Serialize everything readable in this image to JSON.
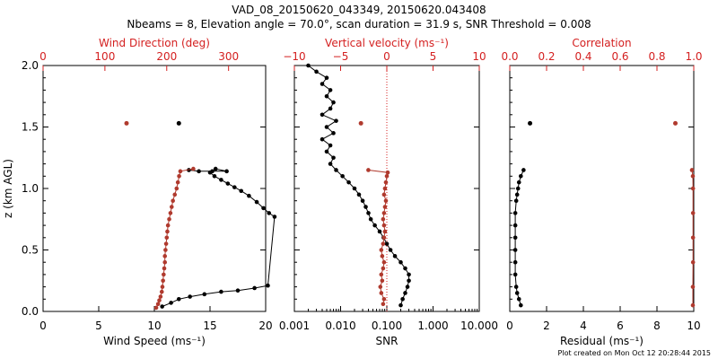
{
  "figure": {
    "title_line1": "VAD_08_20150620_043349, 20150620.043408",
    "title_line2": "Nbeams = 8, Elevation angle = 70.0°, scan duration = 31.9 s, SNR Threshold = 0.008",
    "footer": "Plot created on Mon Oct 12 20:28:44 2015",
    "colors": {
      "black_series": "#000000",
      "red_series": "#b03a2e",
      "red_axis": "#d42020",
      "background": "#ffffff"
    }
  },
  "chart_data": [
    {
      "type": "line",
      "panel": "wind",
      "ylabel": "z (km AGL)",
      "ylim": [
        0,
        2
      ],
      "y_ticks": [
        "0.0",
        "0.5",
        "1.0",
        "1.5",
        "2.0"
      ],
      "bottom_axis": {
        "label": "Wind Speed (ms⁻¹)",
        "lim": [
          0,
          20
        ],
        "ticks": [
          "0",
          "5",
          "10",
          "15",
          "20"
        ]
      },
      "top_axis": {
        "label": "Wind Direction (deg)",
        "lim": [
          0,
          360
        ],
        "ticks": [
          "0",
          "100",
          "200",
          "300"
        ]
      },
      "series": [
        {
          "name": "Wind Speed",
          "axis": "bottom",
          "color": "#000000",
          "points": [
            [
              10.7,
              0.04
            ],
            [
              11.5,
              0.07
            ],
            [
              12.2,
              0.1
            ],
            [
              13.2,
              0.12
            ],
            [
              14.5,
              0.14
            ],
            [
              16.0,
              0.16
            ],
            [
              17.5,
              0.17
            ],
            [
              19.0,
              0.19
            ],
            [
              20.2,
              0.21
            ],
            [
              20.8,
              0.77
            ],
            [
              20.3,
              0.8
            ],
            [
              19.8,
              0.84
            ],
            [
              19.2,
              0.89
            ],
            [
              18.5,
              0.94
            ],
            [
              17.8,
              0.98
            ],
            [
              17.2,
              1.01
            ],
            [
              16.6,
              1.04
            ],
            [
              16.0,
              1.07
            ],
            [
              15.4,
              1.1
            ],
            [
              15.0,
              1.13
            ],
            [
              15.5,
              1.16
            ],
            [
              16.5,
              1.14
            ],
            [
              15.2,
              1.14
            ],
            [
              14.0,
              1.14
            ],
            [
              13.1,
              1.15
            ]
          ]
        },
        {
          "name": "Wind Direction",
          "axis": "top",
          "color": "#b03a2e",
          "points": [
            [
              183,
              0.03
            ],
            [
              186,
              0.06
            ],
            [
              188,
              0.09
            ],
            [
              190,
              0.12
            ],
            [
              192,
              0.16
            ],
            [
              193,
              0.2
            ],
            [
              194,
              0.25
            ],
            [
              195,
              0.3
            ],
            [
              196,
              0.35
            ],
            [
              197,
              0.4
            ],
            [
              197,
              0.45
            ],
            [
              198,
              0.5
            ],
            [
              199,
              0.55
            ],
            [
              200,
              0.6
            ],
            [
              201,
              0.65
            ],
            [
              202,
              0.7
            ],
            [
              204,
              0.75
            ],
            [
              206,
              0.8
            ],
            [
              208,
              0.85
            ],
            [
              210,
              0.9
            ],
            [
              213,
              0.95
            ],
            [
              216,
              1.0
            ],
            [
              218,
              1.05
            ],
            [
              220,
              1.1
            ],
            [
              222,
              1.14
            ],
            [
              243,
              1.16
            ]
          ]
        }
      ],
      "isolated_points": [
        {
          "series": "Wind Speed",
          "x": 12.2,
          "y": 1.53
        },
        {
          "series": "Wind Direction",
          "x": 135,
          "y": 1.53
        }
      ]
    },
    {
      "type": "line",
      "panel": "snr",
      "ylim": [
        0,
        2
      ],
      "bottom_axis": {
        "label": "SNR",
        "scale": "log",
        "lim": [
          0.001,
          10
        ],
        "ticks": [
          "0.001",
          "0.010",
          "0.100",
          "1.000",
          "10.000"
        ]
      },
      "top_axis": {
        "label": "Vertical velocity (ms⁻¹)",
        "lim": [
          -10,
          10
        ],
        "ticks": [
          "−10",
          "−5",
          "0",
          "5",
          "10"
        ]
      },
      "zero_reference": {
        "axis": "top",
        "value": 0,
        "style": "dotted"
      },
      "series": [
        {
          "name": "SNR",
          "axis": "bottom",
          "color": "#000000",
          "points": [
            [
              0.2,
              0.05
            ],
            [
              0.22,
              0.1
            ],
            [
              0.25,
              0.15
            ],
            [
              0.28,
              0.2
            ],
            [
              0.3,
              0.25
            ],
            [
              0.3,
              0.3
            ],
            [
              0.25,
              0.35
            ],
            [
              0.2,
              0.4
            ],
            [
              0.15,
              0.45
            ],
            [
              0.12,
              0.5
            ],
            [
              0.1,
              0.55
            ],
            [
              0.085,
              0.6
            ],
            [
              0.07,
              0.65
            ],
            [
              0.055,
              0.7
            ],
            [
              0.045,
              0.75
            ],
            [
              0.04,
              0.8
            ],
            [
              0.035,
              0.85
            ],
            [
              0.03,
              0.9
            ],
            [
              0.025,
              0.95
            ],
            [
              0.02,
              1.0
            ],
            [
              0.015,
              1.05
            ],
            [
              0.011,
              1.1
            ],
            [
              0.008,
              1.15
            ],
            [
              0.006,
              1.2
            ],
            [
              0.007,
              1.25
            ],
            [
              0.005,
              1.3
            ],
            [
              0.006,
              1.35
            ],
            [
              0.004,
              1.4
            ],
            [
              0.007,
              1.45
            ],
            [
              0.005,
              1.5
            ],
            [
              0.008,
              1.55
            ],
            [
              0.004,
              1.6
            ],
            [
              0.006,
              1.65
            ],
            [
              0.007,
              1.7
            ],
            [
              0.005,
              1.75
            ],
            [
              0.006,
              1.8
            ],
            [
              0.004,
              1.85
            ],
            [
              0.005,
              1.9
            ],
            [
              0.003,
              1.95
            ],
            [
              0.002,
              2.0
            ]
          ]
        },
        {
          "name": "Vertical velocity",
          "axis": "top",
          "color": "#b03a2e",
          "points": [
            [
              -0.4,
              0.06
            ],
            [
              -0.3,
              0.1
            ],
            [
              -0.6,
              0.15
            ],
            [
              -0.7,
              0.2
            ],
            [
              -0.5,
              0.25
            ],
            [
              -0.6,
              0.3
            ],
            [
              -0.4,
              0.35
            ],
            [
              -0.3,
              0.4
            ],
            [
              -0.5,
              0.45
            ],
            [
              -0.6,
              0.5
            ],
            [
              -0.4,
              0.55
            ],
            [
              -0.3,
              0.6
            ],
            [
              -0.2,
              0.65
            ],
            [
              -0.3,
              0.7
            ],
            [
              -0.4,
              0.75
            ],
            [
              -0.3,
              0.8
            ],
            [
              -0.2,
              0.85
            ],
            [
              -0.1,
              0.9
            ],
            [
              -0.3,
              0.95
            ],
            [
              -0.2,
              1.0
            ],
            [
              -0.1,
              1.05
            ],
            [
              0.0,
              1.1
            ],
            [
              0.1,
              1.13
            ],
            [
              -2.0,
              1.15
            ]
          ]
        }
      ],
      "isolated_points": [
        {
          "series": "Vertical velocity",
          "x": -2.8,
          "y": 1.53
        }
      ]
    },
    {
      "type": "line",
      "panel": "residual",
      "ylim": [
        0,
        2
      ],
      "bottom_axis": {
        "label": "Residual (ms⁻¹)",
        "lim": [
          0,
          10
        ],
        "ticks": [
          "0",
          "2",
          "4",
          "6",
          "8",
          "10"
        ]
      },
      "top_axis": {
        "label": "Correlation",
        "lim": [
          0,
          1
        ],
        "ticks": [
          "0.0",
          "0.2",
          "0.4",
          "0.6",
          "0.8",
          "1.0"
        ]
      },
      "series": [
        {
          "name": "Residual",
          "axis": "bottom",
          "color": "#000000",
          "points": [
            [
              0.6,
              0.05
            ],
            [
              0.5,
              0.1
            ],
            [
              0.4,
              0.15
            ],
            [
              0.35,
              0.2
            ],
            [
              0.3,
              0.3
            ],
            [
              0.3,
              0.4
            ],
            [
              0.3,
              0.5
            ],
            [
              0.3,
              0.6
            ],
            [
              0.3,
              0.7
            ],
            [
              0.3,
              0.8
            ],
            [
              0.35,
              0.9
            ],
            [
              0.4,
              0.95
            ],
            [
              0.45,
              1.0
            ],
            [
              0.5,
              1.05
            ],
            [
              0.6,
              1.1
            ],
            [
              0.75,
              1.15
            ]
          ]
        },
        {
          "name": "Correlation",
          "axis": "top",
          "color": "#b03a2e",
          "points": [
            [
              0.995,
              0.05
            ],
            [
              0.995,
              0.2
            ],
            [
              0.996,
              0.4
            ],
            [
              0.996,
              0.6
            ],
            [
              0.996,
              0.8
            ],
            [
              0.996,
              1.0
            ],
            [
              0.995,
              1.1
            ],
            [
              0.99,
              1.15
            ]
          ]
        }
      ],
      "isolated_points": [
        {
          "series": "Residual",
          "x": 1.1,
          "y": 1.53
        },
        {
          "series": "Correlation",
          "x": 0.9,
          "y": 1.53
        }
      ]
    }
  ]
}
